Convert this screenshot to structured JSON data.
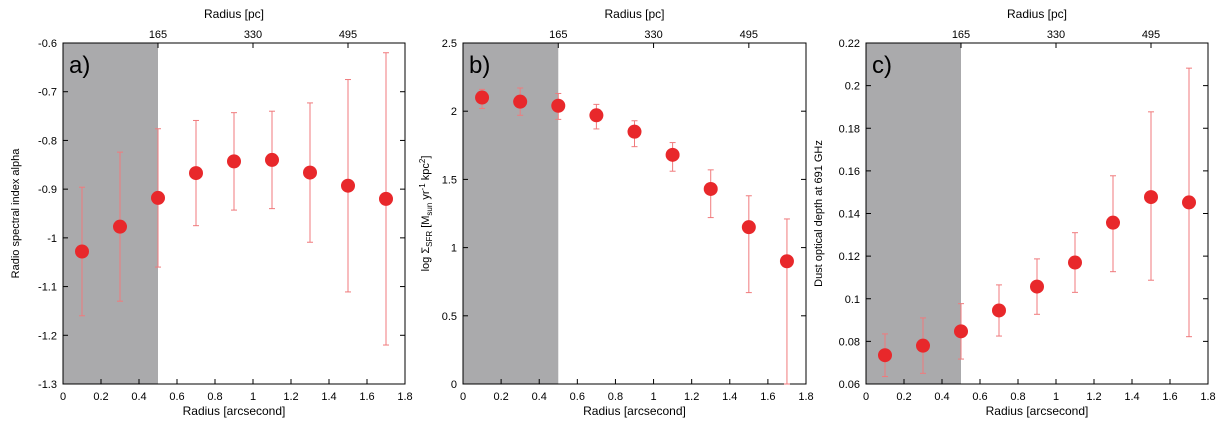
{
  "chart_data": [
    {
      "type": "scatter",
      "panel_label": "a)",
      "xlabel": "Radius [arcsecond]",
      "ylabel": "Radio spectral index alpha",
      "top_xlabel": "Radius [pc]",
      "xlim": [
        0,
        1.8
      ],
      "ylim": [
        -1.3,
        -0.6
      ],
      "xticks": [
        0,
        0.2,
        0.4,
        0.6,
        0.8,
        1,
        1.2,
        1.4,
        1.6,
        1.8
      ],
      "xtick_labels": [
        "0",
        "0.2",
        "0.4",
        "0.6",
        "0.8",
        "1",
        "1.2",
        "1.4",
        "1.6",
        "1.8"
      ],
      "yticks": [
        -1.3,
        -1.2,
        -1.1,
        -1.0,
        -0.9,
        -0.8,
        -0.7,
        -0.6
      ],
      "ytick_labels": [
        "-1.3",
        "-1.2",
        "-1.1",
        "-1",
        "-0.9",
        "-0.8",
        "-0.7",
        "-0.6"
      ],
      "top_ticks": [
        0.5,
        1.0,
        1.5
      ],
      "top_tick_labels": [
        "165",
        "330",
        "495"
      ],
      "shaded_region": [
        0,
        0.5
      ],
      "x": [
        0.1,
        0.3,
        0.5,
        0.7,
        0.9,
        1.1,
        1.3,
        1.5,
        1.7
      ],
      "y": [
        -1.028,
        -0.977,
        -0.918,
        -0.867,
        -0.843,
        -0.84,
        -0.866,
        -0.893,
        -0.92
      ],
      "yerr_low": [
        0.132,
        0.153,
        0.142,
        0.108,
        0.1,
        0.1,
        0.143,
        0.218,
        0.3
      ],
      "yerr_high": [
        0.132,
        0.153,
        0.142,
        0.108,
        0.1,
        0.1,
        0.143,
        0.218,
        0.3
      ],
      "grid": false
    },
    {
      "type": "scatter",
      "panel_label": "b)",
      "xlabel": "Radius [arcsecond]",
      "ylabel_parts": [
        "log Σ",
        "SFR",
        " [M",
        "sun",
        " yr",
        "-1",
        " kpc",
        "2",
        "]"
      ],
      "top_xlabel": "Radius [pc]",
      "xlim": [
        0,
        1.8
      ],
      "ylim": [
        0,
        2.5
      ],
      "xticks": [
        0,
        0.2,
        0.4,
        0.6,
        0.8,
        1,
        1.2,
        1.4,
        1.6,
        1.8
      ],
      "xtick_labels": [
        "0",
        "0.2",
        "0.4",
        "0.6",
        "0.8",
        "1",
        "1.2",
        "1.4",
        "1.6",
        "1.8"
      ],
      "yticks": [
        0,
        0.5,
        1,
        1.5,
        2,
        2.5
      ],
      "ytick_labels": [
        "0",
        "0.5",
        "1",
        "1.5",
        "2",
        "2.5"
      ],
      "top_ticks": [
        0.5,
        1.0,
        1.5
      ],
      "top_tick_labels": [
        "165",
        "330",
        "495"
      ],
      "shaded_region": [
        0,
        0.5
      ],
      "x": [
        0.1,
        0.3,
        0.5,
        0.7,
        0.9,
        1.1,
        1.3,
        1.5,
        1.7
      ],
      "y": [
        2.1,
        2.07,
        2.04,
        1.97,
        1.85,
        1.68,
        1.43,
        1.15,
        0.9
      ],
      "yerr_low": [
        0.08,
        0.1,
        0.1,
        0.1,
        0.11,
        0.12,
        0.21,
        0.48,
        0.9
      ],
      "yerr_high": [
        0.06,
        0.1,
        0.09,
        0.08,
        0.08,
        0.09,
        0.14,
        0.23,
        0.31
      ],
      "grid": false
    },
    {
      "type": "scatter",
      "panel_label": "c)",
      "xlabel": "Radius [arcsecond]",
      "ylabel": "Dust optical depth at 691 GHz",
      "top_xlabel": "Radius [pc]",
      "xlim": [
        0,
        1.8
      ],
      "ylim": [
        0.06,
        0.22
      ],
      "xticks": [
        0,
        0.2,
        0.4,
        0.6,
        0.8,
        1,
        1.2,
        1.4,
        1.6,
        1.8
      ],
      "xtick_labels": [
        "0",
        "0.2",
        "0.4",
        "0.6",
        "0.8",
        "1",
        "1.2",
        "1.4",
        "1.6",
        "1.8"
      ],
      "yticks": [
        0.06,
        0.08,
        0.1,
        0.12,
        0.14,
        0.16,
        0.18,
        0.2,
        0.22
      ],
      "ytick_labels": [
        "0.06",
        "0.08",
        "0.1",
        "0.12",
        "0.14",
        "0.16",
        "0.18",
        "0.2",
        "0.22"
      ],
      "top_ticks": [
        0.5,
        1.0,
        1.5
      ],
      "top_tick_labels": [
        "165",
        "330",
        "495"
      ],
      "shaded_region": [
        0,
        0.5
      ],
      "x": [
        0.1,
        0.3,
        0.5,
        0.7,
        0.9,
        1.1,
        1.3,
        1.5,
        1.7
      ],
      "y": [
        0.0735,
        0.078,
        0.0847,
        0.0945,
        0.1057,
        0.117,
        0.1357,
        0.1477,
        0.1452
      ],
      "yerr_low": [
        0.01,
        0.013,
        0.013,
        0.012,
        0.013,
        0.014,
        0.023,
        0.039,
        0.063
      ],
      "yerr_high": [
        0.01,
        0.013,
        0.013,
        0.012,
        0.013,
        0.014,
        0.022,
        0.04,
        0.063
      ],
      "grid": false
    }
  ],
  "colors": {
    "marker": "#e8282b",
    "errorbar": "#f07a7c",
    "shade": "#aaaaac",
    "axis": "#000000"
  }
}
